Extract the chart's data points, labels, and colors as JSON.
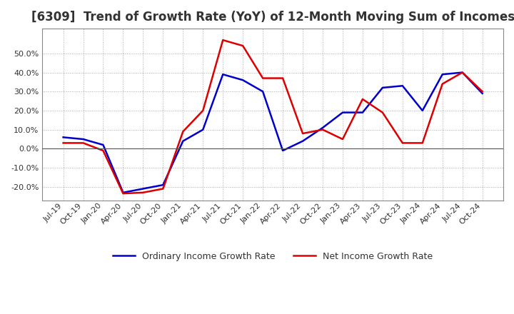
{
  "title": "[6309]  Trend of Growth Rate (YoY) of 12-Month Moving Sum of Incomes",
  "title_fontsize": 12,
  "ylim": [
    -27,
    63
  ],
  "yticks": [
    -20,
    -10,
    0,
    10,
    20,
    30,
    40,
    50
  ],
  "background_color": "#ffffff",
  "plot_bg_color": "#ffffff",
  "grid_color": "#aaaaaa",
  "line_blue": "#0000cc",
  "line_red": "#dd0000",
  "legend_labels": [
    "Ordinary Income Growth Rate",
    "Net Income Growth Rate"
  ],
  "x_labels": [
    "Jul-19",
    "Oct-19",
    "Jan-20",
    "Apr-20",
    "Jul-20",
    "Oct-20",
    "Jan-21",
    "Apr-21",
    "Jul-21",
    "Oct-21",
    "Jan-22",
    "Apr-22",
    "Jul-22",
    "Oct-22",
    "Jan-23",
    "Apr-23",
    "Jul-23",
    "Oct-23",
    "Jan-24",
    "Apr-24",
    "Jul-24",
    "Oct-24"
  ],
  "ordinary_income": [
    6.0,
    5.0,
    2.0,
    -23.0,
    -21.0,
    -19.0,
    4.0,
    10.0,
    39.0,
    36.0,
    30.0,
    -1.0,
    4.0,
    11.0,
    19.0,
    19.0,
    32.0,
    33.0,
    20.0,
    39.0,
    40.0,
    29.0
  ],
  "net_income": [
    3.0,
    3.0,
    -1.0,
    -23.5,
    -23.0,
    -21.0,
    9.0,
    20.0,
    57.0,
    54.0,
    37.0,
    37.0,
    8.0,
    10.0,
    5.0,
    26.0,
    19.0,
    3.0,
    3.0,
    34.0,
    40.0,
    30.0
  ]
}
